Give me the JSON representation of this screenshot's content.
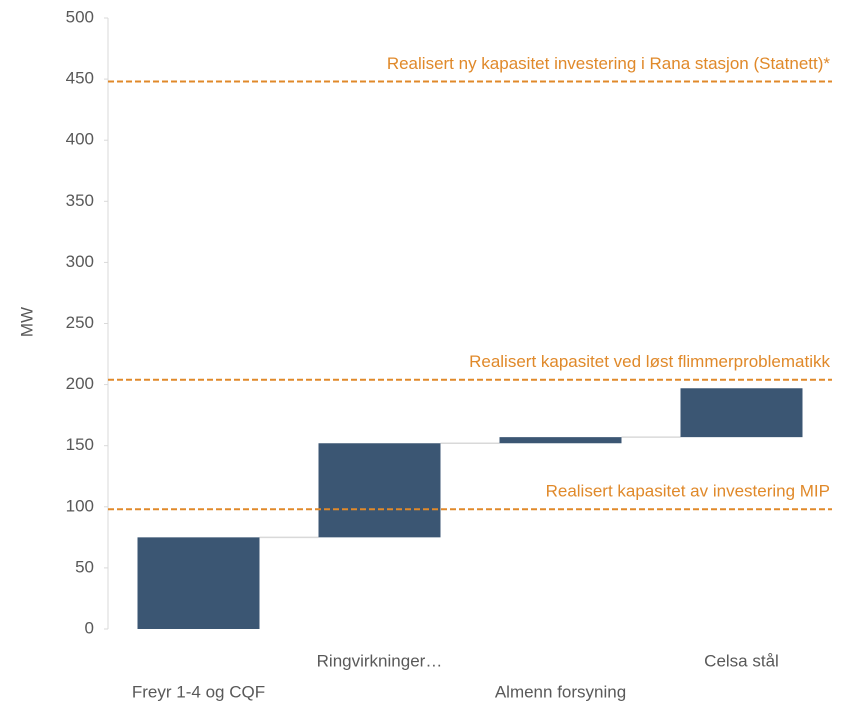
{
  "chart_data": {
    "type": "waterfall",
    "y_label": "MW",
    "categories": [
      "Freyr 1-4 og CQF",
      "Ringvirkninger…",
      "Almenn forsyning",
      "Celsa stål"
    ],
    "values": [
      75,
      77,
      5,
      40
    ],
    "color": "#3b5673",
    "ylim": [
      0,
      500
    ],
    "yticks": [
      0,
      50,
      100,
      150,
      200,
      250,
      300,
      350,
      400,
      450,
      500
    ],
    "reference_lines": [
      {
        "value": 448,
        "label": "Realisert ny kapasitet investering i Rana stasjon (Statnett)*"
      },
      {
        "value": 204,
        "label": "Realisert kapasitet ved løst flimmerproblematikk"
      },
      {
        "value": 98,
        "label": "Realisert kapasitet av investering MIP"
      }
    ],
    "reference_color": "#e0892a"
  }
}
